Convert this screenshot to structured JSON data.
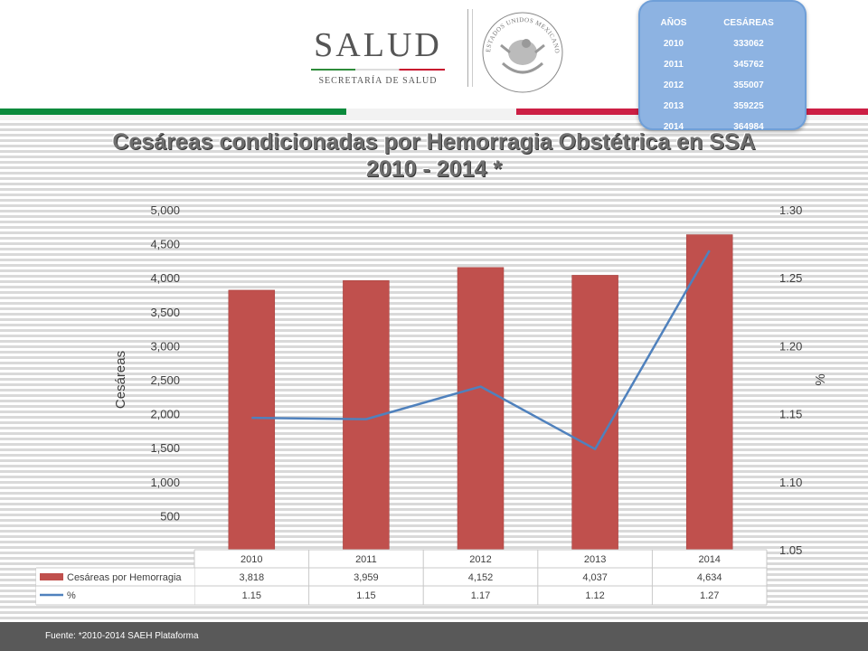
{
  "logo": {
    "word": "SALUD",
    "subtitle": "SECRETARÍA DE SALUD"
  },
  "seal": {
    "caption": "ESTADOS UNIDOS MEXICANOS"
  },
  "summary_table": {
    "headers": [
      "AÑOS",
      "CESÁREAS"
    ],
    "rows": [
      [
        "2010",
        "333062"
      ],
      [
        "2011",
        "345762"
      ],
      [
        "2012",
        "355007"
      ],
      [
        "2013",
        "359225"
      ],
      [
        "2014",
        "364984"
      ]
    ]
  },
  "title_line1": "Cesáreas condicionadas por Hemorragia Obstétrica en SSA",
  "title_line2": "2010 - 2014 *",
  "chart_data": {
    "type": "bar",
    "categories": [
      "2010",
      "2011",
      "2012",
      "2013",
      "2014"
    ],
    "series": [
      {
        "name": "Cesáreas por Hemorragia",
        "type": "bar",
        "axis": "left",
        "color": "#c0504d",
        "values": [
          3818,
          3959,
          4152,
          4037,
          4634
        ],
        "labels": [
          "3,818",
          "3,959",
          "4,152",
          "4,037",
          "4,634"
        ]
      },
      {
        "name": "%",
        "type": "line",
        "axis": "right",
        "color": "#4f81bd",
        "values": [
          1.147,
          1.146,
          1.17,
          1.124,
          1.27
        ],
        "labels": [
          "1.15",
          "1.15",
          "1.17",
          "1.12",
          "1.27"
        ]
      }
    ],
    "ylabel": "Cesáreas",
    "y2label": "%",
    "ylim": [
      0,
      5000
    ],
    "y_ticks": [
      500,
      1000,
      1500,
      2000,
      2500,
      3000,
      3500,
      4000,
      4500,
      5000
    ],
    "y_tick_labels": [
      "500",
      "1,000",
      "1,500",
      "2,000",
      "2,500",
      "3,000",
      "3,500",
      "4,000",
      "4,500",
      "5,000"
    ],
    "y2lim": [
      1.05,
      1.3
    ],
    "y2_ticks": [
      1.05,
      1.1,
      1.15,
      1.2,
      1.25,
      1.3
    ],
    "y2_tick_labels": [
      "1.05",
      "1.10",
      "1.15",
      "1.20",
      "1.25",
      "1.30"
    ],
    "legend": "data-table",
    "grid": false
  },
  "footer": {
    "source": "Fuente: *2010-2014 SAEH Plataforma"
  }
}
